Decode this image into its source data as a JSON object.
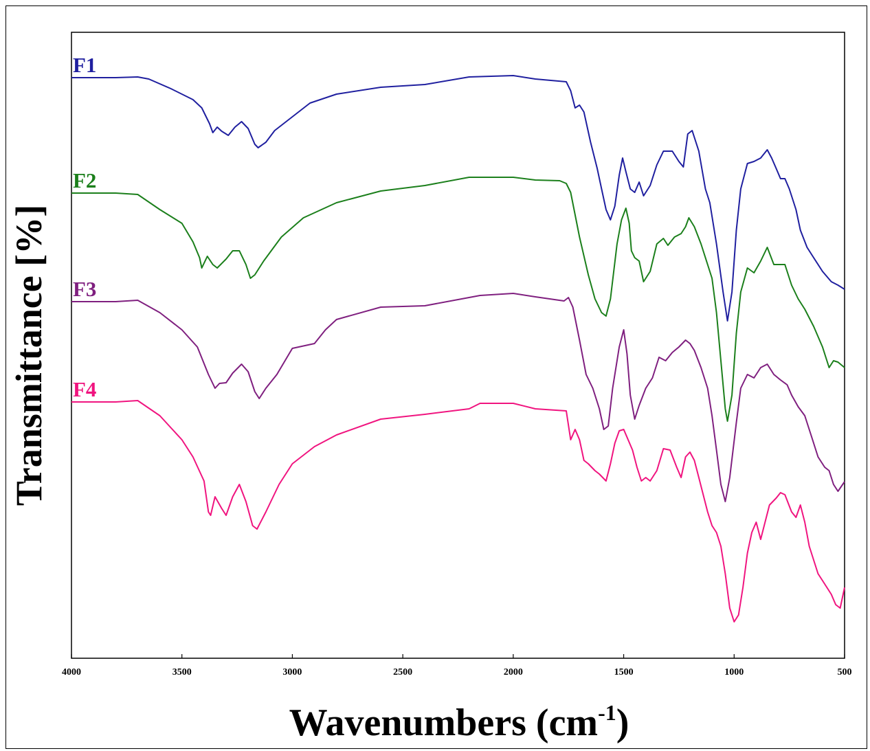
{
  "chart_data": {
    "type": "line",
    "xlabel": "Wavenumbers (cm",
    "xlabel_sup": "-1",
    "xlabel_close": ")",
    "ylabel": "Transmittance [%]",
    "xlim": [
      4000,
      500
    ],
    "x_reversed": true,
    "x_ticks": [
      4000,
      3500,
      3000,
      2500,
      2000,
      1500,
      1000,
      500
    ],
    "y_ticks": [],
    "grid": false,
    "legend": "inline labels at left of each curve",
    "series": [
      {
        "name": "F1",
        "color": "#1f1f9f",
        "points": [
          [
            4000,
            18
          ],
          [
            3800,
            18
          ],
          [
            3700,
            17
          ],
          [
            3650,
            20
          ],
          [
            3550,
            34
          ],
          [
            3450,
            50
          ],
          [
            3410,
            62
          ],
          [
            3375,
            85
          ],
          [
            3360,
            98
          ],
          [
            3340,
            90
          ],
          [
            3320,
            96
          ],
          [
            3290,
            102
          ],
          [
            3260,
            90
          ],
          [
            3230,
            82
          ],
          [
            3200,
            92
          ],
          [
            3170,
            115
          ],
          [
            3155,
            120
          ],
          [
            3120,
            112
          ],
          [
            3080,
            95
          ],
          [
            3000,
            75
          ],
          [
            2920,
            55
          ],
          [
            2800,
            42
          ],
          [
            2600,
            32
          ],
          [
            2400,
            28
          ],
          [
            2200,
            17
          ],
          [
            2000,
            15
          ],
          [
            1900,
            20
          ],
          [
            1760,
            24
          ],
          [
            1740,
            37
          ],
          [
            1720,
            62
          ],
          [
            1700,
            58
          ],
          [
            1680,
            68
          ],
          [
            1650,
            112
          ],
          [
            1620,
            150
          ],
          [
            1600,
            180
          ],
          [
            1580,
            210
          ],
          [
            1560,
            225
          ],
          [
            1540,
            205
          ],
          [
            1520,
            160
          ],
          [
            1505,
            135
          ],
          [
            1490,
            155
          ],
          [
            1470,
            180
          ],
          [
            1450,
            185
          ],
          [
            1430,
            170
          ],
          [
            1410,
            190
          ],
          [
            1380,
            175
          ],
          [
            1350,
            145
          ],
          [
            1320,
            125
          ],
          [
            1280,
            125
          ],
          [
            1250,
            140
          ],
          [
            1230,
            148
          ],
          [
            1210,
            100
          ],
          [
            1190,
            95
          ],
          [
            1160,
            125
          ],
          [
            1130,
            180
          ],
          [
            1110,
            200
          ],
          [
            1080,
            260
          ],
          [
            1050,
            330
          ],
          [
            1030,
            372
          ],
          [
            1010,
            330
          ],
          [
            990,
            240
          ],
          [
            970,
            180
          ],
          [
            940,
            143
          ],
          [
            910,
            140
          ],
          [
            880,
            135
          ],
          [
            850,
            123
          ],
          [
            830,
            135
          ],
          [
            810,
            150
          ],
          [
            790,
            165
          ],
          [
            770,
            165
          ],
          [
            750,
            180
          ],
          [
            720,
            210
          ],
          [
            700,
            240
          ],
          [
            670,
            265
          ],
          [
            640,
            280
          ],
          [
            600,
            300
          ],
          [
            560,
            315
          ],
          [
            530,
            320
          ],
          [
            500,
            326
          ]
        ]
      },
      {
        "name": "F2",
        "color": "#1b7f1b",
        "points": [
          [
            4000,
            186
          ],
          [
            3800,
            186
          ],
          [
            3700,
            188
          ],
          [
            3600,
            210
          ],
          [
            3500,
            230
          ],
          [
            3450,
            257
          ],
          [
            3420,
            280
          ],
          [
            3410,
            295
          ],
          [
            3385,
            278
          ],
          [
            3360,
            290
          ],
          [
            3340,
            295
          ],
          [
            3300,
            282
          ],
          [
            3270,
            270
          ],
          [
            3240,
            270
          ],
          [
            3210,
            290
          ],
          [
            3190,
            310
          ],
          [
            3170,
            305
          ],
          [
            3130,
            285
          ],
          [
            3050,
            250
          ],
          [
            2950,
            222
          ],
          [
            2800,
            200
          ],
          [
            2600,
            183
          ],
          [
            2400,
            175
          ],
          [
            2200,
            163
          ],
          [
            2000,
            163
          ],
          [
            1900,
            167
          ],
          [
            1790,
            168
          ],
          [
            1760,
            172
          ],
          [
            1740,
            185
          ],
          [
            1700,
            250
          ],
          [
            1660,
            305
          ],
          [
            1630,
            340
          ],
          [
            1600,
            360
          ],
          [
            1580,
            365
          ],
          [
            1560,
            340
          ],
          [
            1530,
            260
          ],
          [
            1510,
            225
          ],
          [
            1490,
            208
          ],
          [
            1475,
            230
          ],
          [
            1465,
            270
          ],
          [
            1450,
            280
          ],
          [
            1430,
            285
          ],
          [
            1410,
            315
          ],
          [
            1380,
            300
          ],
          [
            1350,
            260
          ],
          [
            1320,
            252
          ],
          [
            1300,
            262
          ],
          [
            1270,
            250
          ],
          [
            1240,
            245
          ],
          [
            1220,
            235
          ],
          [
            1205,
            222
          ],
          [
            1180,
            235
          ],
          [
            1150,
            260
          ],
          [
            1120,
            290
          ],
          [
            1100,
            310
          ],
          [
            1080,
            360
          ],
          [
            1060,
            430
          ],
          [
            1040,
            500
          ],
          [
            1030,
            518
          ],
          [
            1010,
            480
          ],
          [
            990,
            390
          ],
          [
            970,
            330
          ],
          [
            940,
            295
          ],
          [
            910,
            302
          ],
          [
            880,
            285
          ],
          [
            850,
            265
          ],
          [
            820,
            290
          ],
          [
            790,
            290
          ],
          [
            770,
            290
          ],
          [
            740,
            320
          ],
          [
            710,
            340
          ],
          [
            680,
            355
          ],
          [
            640,
            380
          ],
          [
            600,
            410
          ],
          [
            570,
            440
          ],
          [
            550,
            430
          ],
          [
            530,
            432
          ],
          [
            500,
            440
          ]
        ]
      },
      {
        "name": "F3",
        "color": "#7f1f7f",
        "points": [
          [
            4000,
            344
          ],
          [
            3800,
            344
          ],
          [
            3700,
            342
          ],
          [
            3600,
            360
          ],
          [
            3500,
            385
          ],
          [
            3430,
            410
          ],
          [
            3380,
            450
          ],
          [
            3350,
            470
          ],
          [
            3330,
            463
          ],
          [
            3300,
            462
          ],
          [
            3270,
            448
          ],
          [
            3230,
            435
          ],
          [
            3200,
            446
          ],
          [
            3170,
            475
          ],
          [
            3150,
            485
          ],
          [
            3120,
            470
          ],
          [
            3070,
            450
          ],
          [
            3000,
            412
          ],
          [
            2900,
            405
          ],
          [
            2850,
            385
          ],
          [
            2800,
            370
          ],
          [
            2600,
            352
          ],
          [
            2400,
            350
          ],
          [
            2200,
            338
          ],
          [
            2150,
            335
          ],
          [
            2000,
            332
          ],
          [
            1900,
            337
          ],
          [
            1770,
            343
          ],
          [
            1750,
            338
          ],
          [
            1730,
            352
          ],
          [
            1700,
            400
          ],
          [
            1670,
            450
          ],
          [
            1640,
            470
          ],
          [
            1610,
            500
          ],
          [
            1590,
            530
          ],
          [
            1570,
            525
          ],
          [
            1550,
            470
          ],
          [
            1520,
            410
          ],
          [
            1500,
            385
          ],
          [
            1485,
            420
          ],
          [
            1470,
            480
          ],
          [
            1450,
            515
          ],
          [
            1430,
            495
          ],
          [
            1400,
            470
          ],
          [
            1370,
            455
          ],
          [
            1340,
            425
          ],
          [
            1310,
            430
          ],
          [
            1280,
            418
          ],
          [
            1250,
            410
          ],
          [
            1220,
            400
          ],
          [
            1200,
            405
          ],
          [
            1180,
            415
          ],
          [
            1150,
            440
          ],
          [
            1120,
            470
          ],
          [
            1100,
            510
          ],
          [
            1080,
            560
          ],
          [
            1060,
            610
          ],
          [
            1040,
            635
          ],
          [
            1020,
            600
          ],
          [
            990,
            520
          ],
          [
            970,
            470
          ],
          [
            940,
            450
          ],
          [
            910,
            455
          ],
          [
            880,
            440
          ],
          [
            850,
            435
          ],
          [
            820,
            450
          ],
          [
            790,
            458
          ],
          [
            760,
            465
          ],
          [
            740,
            480
          ],
          [
            710,
            497
          ],
          [
            680,
            510
          ],
          [
            650,
            540
          ],
          [
            620,
            570
          ],
          [
            590,
            585
          ],
          [
            570,
            590
          ],
          [
            550,
            610
          ],
          [
            530,
            620
          ],
          [
            500,
            606
          ]
        ]
      },
      {
        "name": "F4",
        "color": "#f0147f",
        "points": [
          [
            4000,
            490
          ],
          [
            3800,
            490
          ],
          [
            3700,
            488
          ],
          [
            3600,
            510
          ],
          [
            3500,
            545
          ],
          [
            3450,
            570
          ],
          [
            3400,
            605
          ],
          [
            3380,
            650
          ],
          [
            3370,
            655
          ],
          [
            3350,
            628
          ],
          [
            3320,
            645
          ],
          [
            3300,
            655
          ],
          [
            3270,
            628
          ],
          [
            3240,
            610
          ],
          [
            3210,
            635
          ],
          [
            3180,
            670
          ],
          [
            3160,
            675
          ],
          [
            3120,
            650
          ],
          [
            3060,
            610
          ],
          [
            3000,
            580
          ],
          [
            2900,
            555
          ],
          [
            2800,
            538
          ],
          [
            2600,
            515
          ],
          [
            2400,
            508
          ],
          [
            2200,
            500
          ],
          [
            2150,
            492
          ],
          [
            2000,
            492
          ],
          [
            1900,
            500
          ],
          [
            1760,
            503
          ],
          [
            1740,
            545
          ],
          [
            1720,
            530
          ],
          [
            1700,
            545
          ],
          [
            1680,
            575
          ],
          [
            1660,
            580
          ],
          [
            1630,
            590
          ],
          [
            1610,
            595
          ],
          [
            1580,
            605
          ],
          [
            1560,
            580
          ],
          [
            1540,
            550
          ],
          [
            1520,
            532
          ],
          [
            1500,
            530
          ],
          [
            1480,
            545
          ],
          [
            1460,
            560
          ],
          [
            1440,
            585
          ],
          [
            1420,
            605
          ],
          [
            1400,
            600
          ],
          [
            1380,
            605
          ],
          [
            1350,
            590
          ],
          [
            1320,
            558
          ],
          [
            1290,
            560
          ],
          [
            1260,
            585
          ],
          [
            1240,
            600
          ],
          [
            1220,
            570
          ],
          [
            1200,
            563
          ],
          [
            1180,
            575
          ],
          [
            1160,
            600
          ],
          [
            1140,
            625
          ],
          [
            1120,
            650
          ],
          [
            1100,
            670
          ],
          [
            1080,
            680
          ],
          [
            1060,
            700
          ],
          [
            1040,
            740
          ],
          [
            1020,
            790
          ],
          [
            1000,
            810
          ],
          [
            980,
            800
          ],
          [
            960,
            760
          ],
          [
            940,
            710
          ],
          [
            920,
            680
          ],
          [
            900,
            665
          ],
          [
            880,
            690
          ],
          [
            860,
            665
          ],
          [
            840,
            640
          ],
          [
            810,
            630
          ],
          [
            790,
            622
          ],
          [
            770,
            625
          ],
          [
            740,
            650
          ],
          [
            720,
            658
          ],
          [
            700,
            640
          ],
          [
            680,
            665
          ],
          [
            660,
            700
          ],
          [
            640,
            720
          ],
          [
            620,
            740
          ],
          [
            600,
            750
          ],
          [
            580,
            760
          ],
          [
            560,
            770
          ],
          [
            540,
            785
          ],
          [
            520,
            790
          ],
          [
            500,
            760
          ]
        ]
      }
    ]
  }
}
